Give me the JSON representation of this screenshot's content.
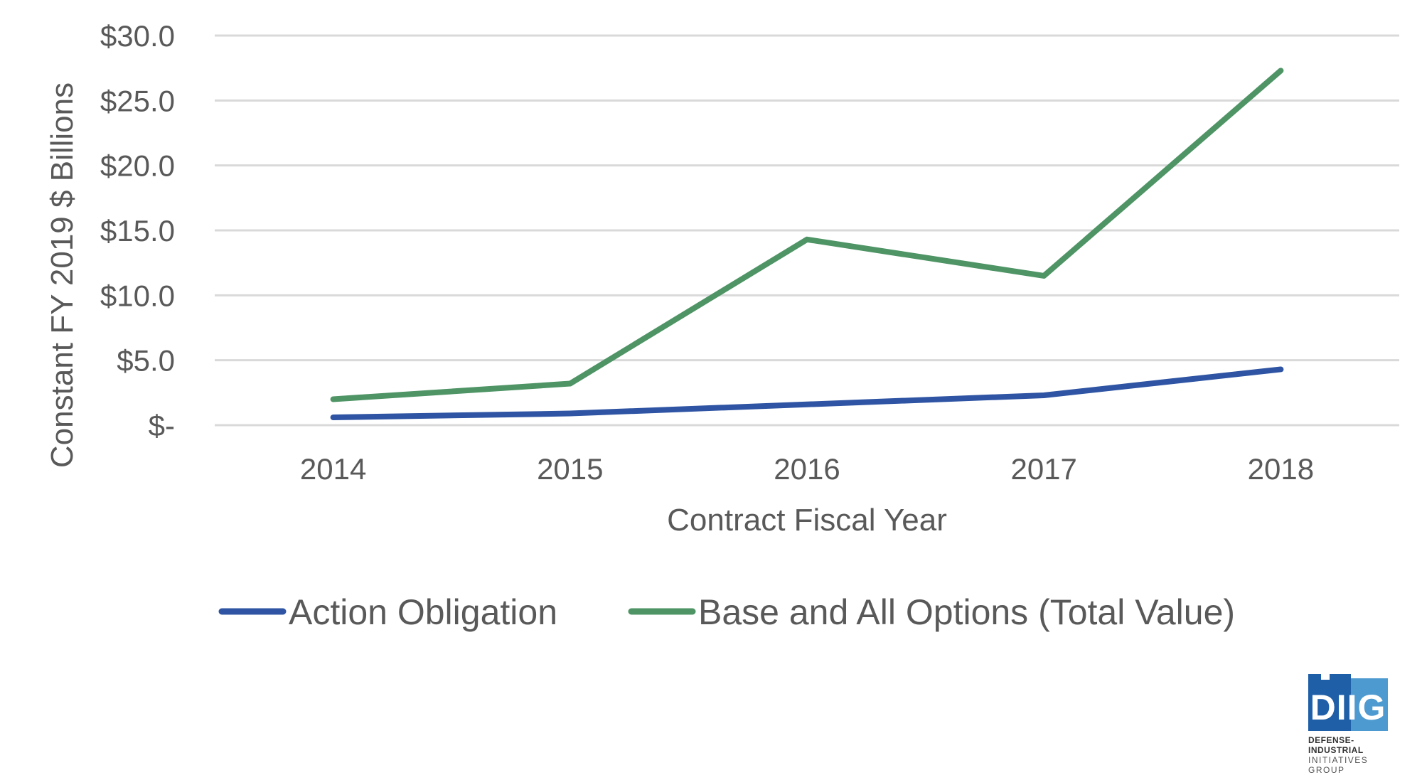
{
  "chart_data": {
    "type": "line",
    "categories": [
      "2014",
      "2015",
      "2016",
      "2017",
      "2018"
    ],
    "series": [
      {
        "name": "Action Obligation",
        "values": [
          0.6,
          0.9,
          1.6,
          2.3,
          4.3
        ],
        "color": "#2E54A3"
      },
      {
        "name": "Base and All Options (Total Value)",
        "values": [
          2.0,
          3.2,
          14.3,
          11.5,
          27.3
        ],
        "color": "#4E9465"
      }
    ],
    "xlabel": "Contract Fiscal Year",
    "ylabel": "Constant FY 2019 $ Billions",
    "ylim": [
      0,
      30
    ],
    "yticks": [
      0,
      5,
      10,
      15,
      20,
      25,
      30
    ],
    "ytick_labels": [
      "$-",
      "$5.0",
      "$10.0",
      "$15.0",
      "$20.0",
      "$25.0",
      "$30.0"
    ],
    "grid": true,
    "legend_position": "bottom"
  },
  "logo": {
    "word": "DIIG",
    "line1": "DEFENSE-INDUSTRIAL",
    "line2": "INITIATIVES GROUP",
    "color_dark": "#1F5FA8",
    "color_light": "#4D9AD0"
  }
}
